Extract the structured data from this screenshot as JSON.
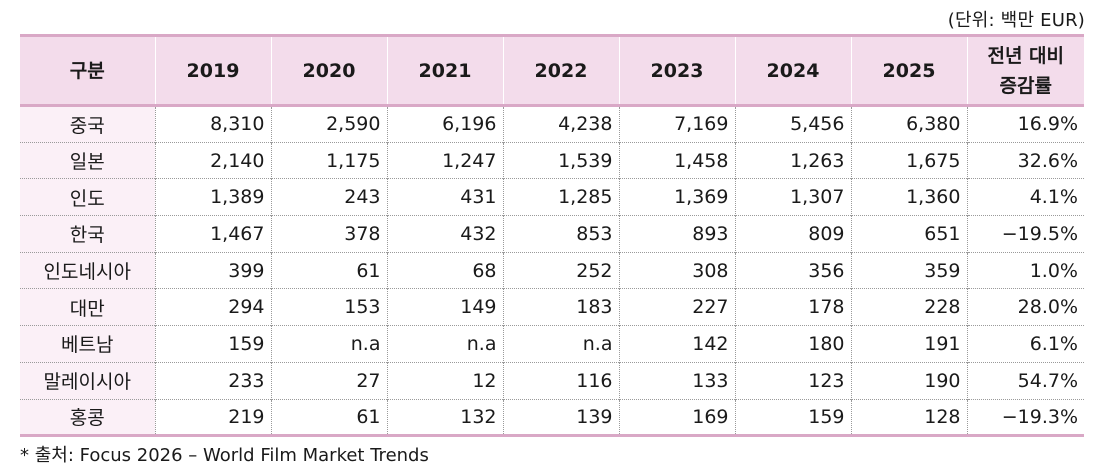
{
  "unit": "(단위: 백만 EUR)",
  "headers": {
    "category": "구분",
    "years": [
      "2019",
      "2020",
      "2021",
      "2022",
      "2023",
      "2024",
      "2025"
    ],
    "change_line1": "전년 대비",
    "change_line2": "증감률"
  },
  "rows": [
    {
      "country": "중국",
      "values": [
        "8,310",
        "2,590",
        "6,196",
        "4,238",
        "7,169",
        "5,456",
        "6,380"
      ],
      "change": "16.9%"
    },
    {
      "country": "일본",
      "values": [
        "2,140",
        "1,175",
        "1,247",
        "1,539",
        "1,458",
        "1,263",
        "1,675"
      ],
      "change": "32.6%"
    },
    {
      "country": "인도",
      "values": [
        "1,389",
        "243",
        "431",
        "1,285",
        "1,369",
        "1,307",
        "1,360"
      ],
      "change": "4.1%"
    },
    {
      "country": "한국",
      "values": [
        "1,467",
        "378",
        "432",
        "853",
        "893",
        "809",
        "651"
      ],
      "change": "−19.5%"
    },
    {
      "country": "인도네시아",
      "values": [
        "399",
        "61",
        "68",
        "252",
        "308",
        "356",
        "359"
      ],
      "change": "1.0%"
    },
    {
      "country": "대만",
      "values": [
        "294",
        "153",
        "149",
        "183",
        "227",
        "178",
        "228"
      ],
      "change": "28.0%"
    },
    {
      "country": "베트남",
      "values": [
        "159",
        "n.a",
        "n.a",
        "n.a",
        "142",
        "180",
        "191"
      ],
      "change": "6.1%"
    },
    {
      "country": "말레이시아",
      "values": [
        "233",
        "27",
        "12",
        "116",
        "133",
        "123",
        "190"
      ],
      "change": "54.7%"
    },
    {
      "country": "홍콩",
      "values": [
        "219",
        "61",
        "132",
        "139",
        "169",
        "159",
        "128"
      ],
      "change": "−19.3%"
    }
  ],
  "source": "* 출처: Focus 2026 – World Film Market Trends"
}
